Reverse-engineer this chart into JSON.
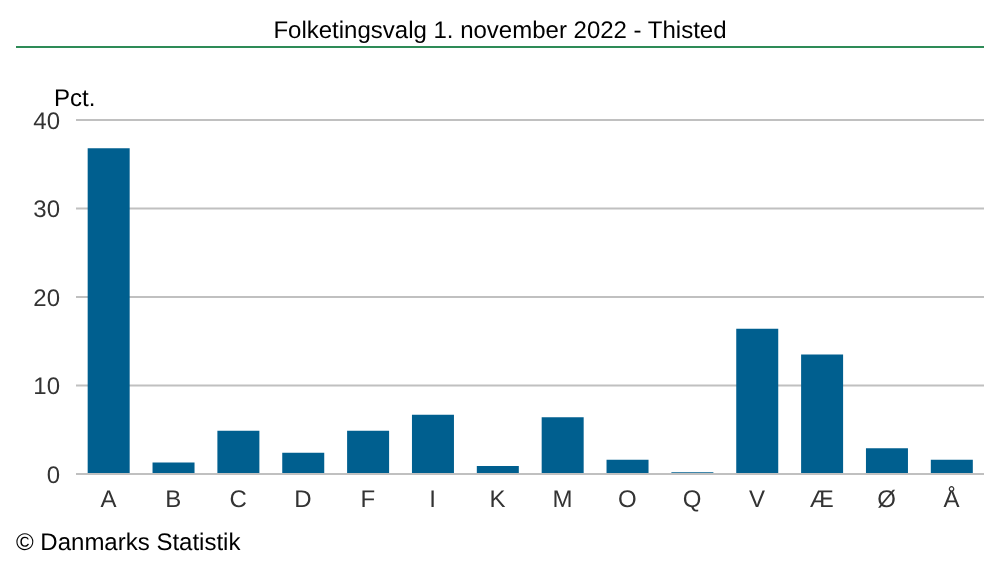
{
  "chart_data": {
    "type": "bar",
    "title": "Folketingsvalg 1. november 2022 - Thisted",
    "ylabel": "Pct.",
    "categories": [
      "A",
      "B",
      "C",
      "D",
      "F",
      "I",
      "K",
      "M",
      "O",
      "Q",
      "V",
      "Æ",
      "Ø",
      "Å"
    ],
    "values": [
      36.8,
      1.3,
      4.9,
      2.4,
      4.9,
      6.7,
      0.9,
      6.4,
      1.6,
      0.2,
      16.4,
      13.5,
      2.9,
      1.6
    ],
    "color": "#005f8f",
    "ylim": [
      0,
      40
    ],
    "yticks": [
      0,
      10,
      20,
      30,
      40
    ],
    "grid": "y",
    "annotations": [
      "© Danmarks Statistik"
    ]
  }
}
